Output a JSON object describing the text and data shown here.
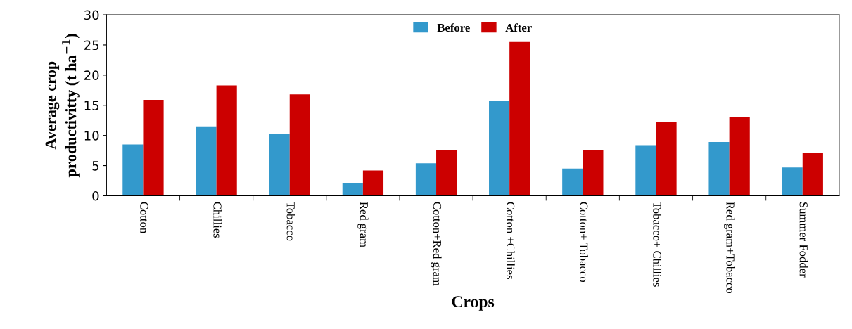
{
  "chart_data": {
    "type": "bar",
    "xlabel": "Crops",
    "ylabel": "Average crop\nproductivitty (t ha$^{−1}$)",
    "categories": [
      "Cotton",
      "Chillies",
      "Tobacco",
      "Red gram",
      "Cotton+Red gram",
      "Cotton +Chillies",
      "Cotton+ Tobacco",
      "Tobacco+ Chillies",
      "Red gram+Tobacco",
      "Summer Fodder"
    ],
    "series": [
      {
        "name": "Before",
        "color": "#3399cc",
        "values": [
          8.5,
          11.5,
          10.2,
          2.1,
          5.4,
          15.7,
          4.5,
          8.4,
          8.9,
          4.7
        ]
      },
      {
        "name": "After",
        "color": "#cc0000",
        "values": [
          15.9,
          18.3,
          16.8,
          4.2,
          7.5,
          25.5,
          7.5,
          12.2,
          13.0,
          7.1
        ]
      }
    ],
    "ylim": [
      0,
      30
    ],
    "yticks": [
      0,
      5,
      10,
      15,
      20,
      25,
      30
    ],
    "grid": false,
    "legend": "top"
  }
}
